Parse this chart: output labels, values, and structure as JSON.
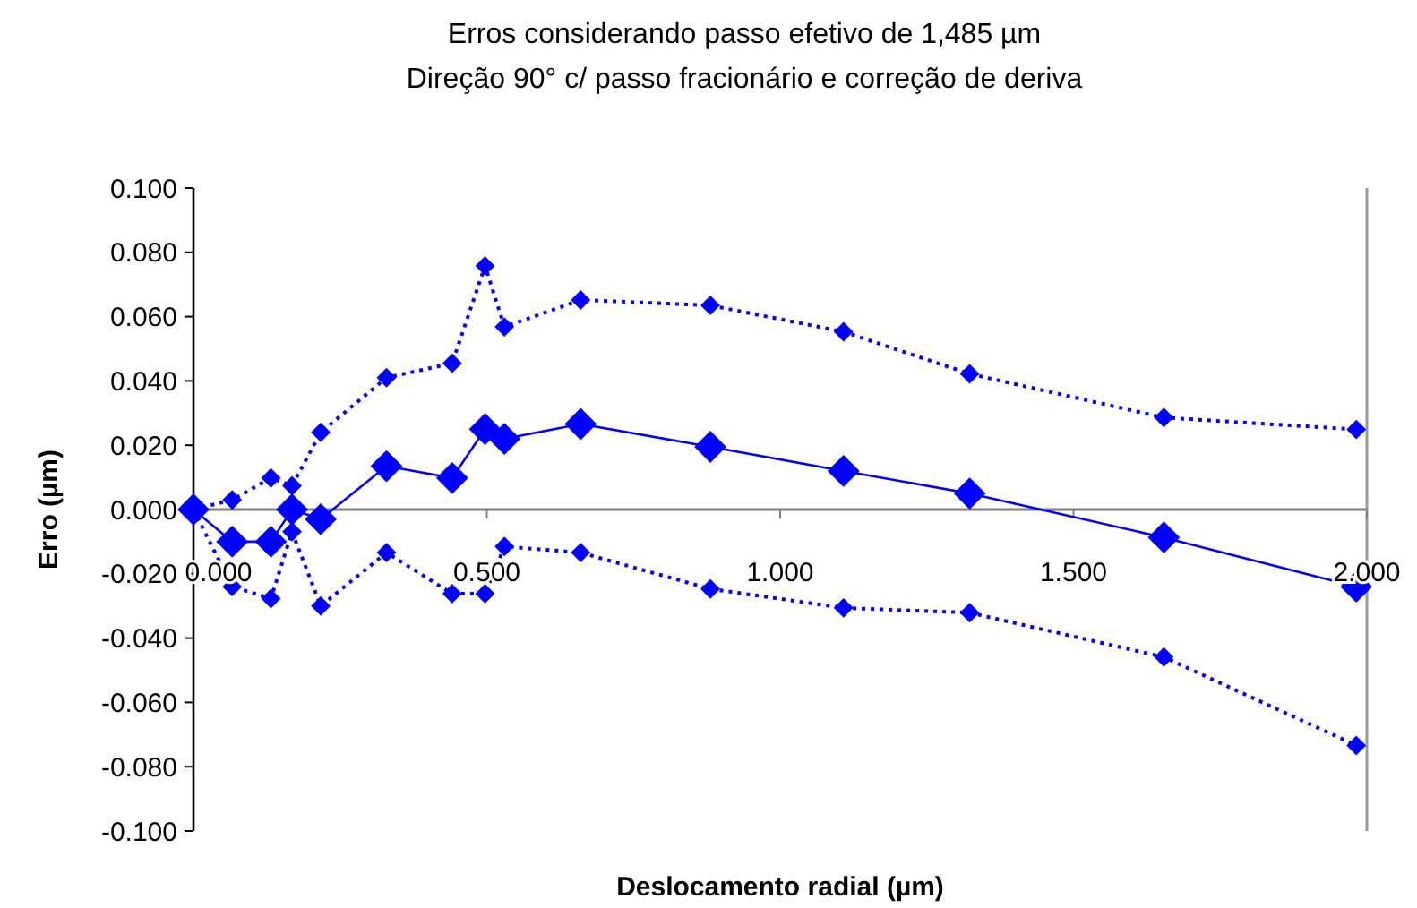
{
  "chart_data": {
    "type": "line",
    "title": "Erros considerando passo efetivo de 1,485 µm",
    "subtitle": "Direção 90° c/ passo fracionário e correção de deriva",
    "xlabel": "Deslocamento radial (µm)",
    "ylabel": "Erro (µm)",
    "xlim": [
      0,
      2
    ],
    "xticks": [
      {
        "value": 0,
        "label": "0.000"
      },
      {
        "value": 0.5,
        "label": "0.500"
      },
      {
        "value": 1,
        "label": "1.000"
      },
      {
        "value": 1.5,
        "label": "1.500"
      },
      {
        "value": 2,
        "label": "2.000"
      }
    ],
    "ylim": [
      -0.1,
      0.1
    ],
    "yticks": [
      {
        "value": -0.1,
        "label": "-0.100"
      },
      {
        "value": -0.08,
        "label": "-0.080"
      },
      {
        "value": -0.06,
        "label": "-0.060"
      },
      {
        "value": -0.04,
        "label": "-0.040"
      },
      {
        "value": -0.02,
        "label": "-0.020"
      },
      {
        "value": 0,
        "label": "0.000"
      },
      {
        "value": 0.02,
        "label": "0.020"
      },
      {
        "value": 0.04,
        "label": "0.040"
      },
      {
        "value": 0.06,
        "label": "0.060"
      },
      {
        "value": 0.08,
        "label": "0.080"
      },
      {
        "value": 0.1,
        "label": "0.100"
      }
    ],
    "grid": false,
    "marker": "diamond",
    "series": [
      {
        "color": "#0000ff",
        "line_style": "solid",
        "x": [
          0,
          0.066,
          0.132,
          0.168,
          0.217,
          0.329,
          0.441,
          0.497,
          0.53,
          0.66,
          0.881,
          1.108,
          1.323,
          1.654,
          1.982
        ],
        "values": [
          0,
          -0.01,
          -0.01,
          0.0,
          -0.003,
          0.0135,
          0.0098,
          0.025,
          0.022,
          0.0266,
          0.0195,
          0.012,
          0.005,
          -0.0087,
          -0.024
        ]
      },
      {
        "color": "#0000ff",
        "line_style": "dotted",
        "x": [
          0,
          0.066,
          0.132,
          0.168,
          0.217,
          0.329,
          0.441,
          0.497,
          0.53,
          0.66,
          0.881,
          1.108,
          1.323,
          1.654,
          1.982
        ],
        "values": [
          0,
          0.003,
          0.0098,
          0.0074,
          0.024,
          0.041,
          0.0455,
          0.0758,
          0.0568,
          0.0652,
          0.0635,
          0.0553,
          0.0422,
          0.0286,
          0.0249
        ]
      },
      {
        "color": "#0000ff",
        "line_style": "dotted",
        "x": [
          0,
          0.066,
          0.132,
          0.168,
          0.217,
          0.329,
          0.441,
          0.497,
          0.53,
          0.66,
          0.881,
          1.108,
          1.323,
          1.654,
          1.982
        ],
        "values": [
          0,
          -0.024,
          -0.0277,
          -0.0069,
          -0.03,
          -0.0134,
          -0.0262,
          -0.0262,
          -0.0115,
          -0.0134,
          -0.0247,
          -0.0306,
          -0.0321,
          -0.0459,
          -0.0734
        ]
      }
    ]
  }
}
